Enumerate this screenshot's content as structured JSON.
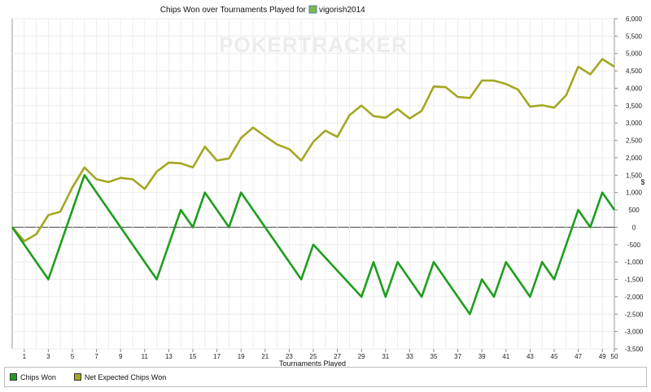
{
  "chart_data": {
    "type": "line",
    "title_prefix": "Chips Won over Tournaments Played for",
    "player": "vigorish2014",
    "watermark": "POKERTRACKER",
    "xlabel": "Tournaments Played",
    "ylabel": "$",
    "xlim": [
      0,
      50
    ],
    "ylim": [
      -3500,
      6000
    ],
    "x_ticks": [
      1,
      3,
      5,
      7,
      9,
      11,
      13,
      15,
      17,
      19,
      21,
      23,
      25,
      27,
      29,
      31,
      33,
      35,
      37,
      39,
      41,
      43,
      45,
      47,
      49,
      50
    ],
    "y_ticks": [
      -3500,
      -3000,
      -2500,
      -2000,
      -1500,
      -1000,
      -500,
      0,
      500,
      1000,
      1500,
      2000,
      2500,
      3000,
      3500,
      4000,
      4500,
      5000,
      5500,
      6000
    ],
    "y_tick_labels": [
      "-3,500",
      "-3,000",
      "-2,500",
      "-2,000",
      "-1,500",
      "-1,000",
      "-500",
      "0",
      "500",
      "1,000",
      "1,500",
      "2,000",
      "2,500",
      "3,000",
      "3,500",
      "4,000",
      "4,500",
      "5,000",
      "5,500",
      "6,000"
    ],
    "grid": true,
    "legend_position": "bottom",
    "series": [
      {
        "name": "Chips Won",
        "color": "#1e9e1e",
        "x": [
          0,
          3,
          6,
          12,
          14,
          15,
          16,
          18,
          19,
          24,
          25,
          29,
          30,
          31,
          32,
          34,
          35,
          38,
          39,
          40,
          41,
          43,
          44,
          45,
          47,
          48,
          49,
          50
        ],
        "values": [
          0,
          -1500,
          1500,
          -1500,
          500,
          0,
          1000,
          0,
          1000,
          -1500,
          -500,
          -2000,
          -1000,
          -2000,
          -1000,
          -2000,
          -1000,
          -2500,
          -1500,
          -2000,
          -1000,
          -2000,
          -1000,
          -1500,
          500,
          0,
          1000,
          500
        ]
      },
      {
        "name": "Net Expected Chips Won",
        "color": "#a3a822",
        "x": [
          0,
          1,
          2,
          3,
          4,
          5,
          6,
          7,
          8,
          9,
          10,
          11,
          12,
          13,
          14,
          15,
          16,
          17,
          18,
          19,
          20,
          21,
          22,
          23,
          24,
          25,
          26,
          27,
          28,
          29,
          30,
          31,
          32,
          33,
          34,
          35,
          36,
          37,
          38,
          39,
          40,
          41,
          42,
          43,
          44,
          45,
          46,
          47,
          48,
          49,
          50
        ],
        "values": [
          0,
          -400,
          -200,
          350,
          450,
          1150,
          1720,
          1380,
          1300,
          1420,
          1380,
          1100,
          1600,
          1860,
          1840,
          1720,
          2320,
          1920,
          1980,
          2570,
          2870,
          2620,
          2380,
          2250,
          1920,
          2460,
          2780,
          2600,
          3220,
          3500,
          3200,
          3150,
          3400,
          3130,
          3350,
          4050,
          4030,
          3750,
          3720,
          4220,
          4220,
          4120,
          3960,
          3470,
          3510,
          3440,
          3800,
          4620,
          4400,
          4840,
          4620
        ]
      }
    ]
  }
}
